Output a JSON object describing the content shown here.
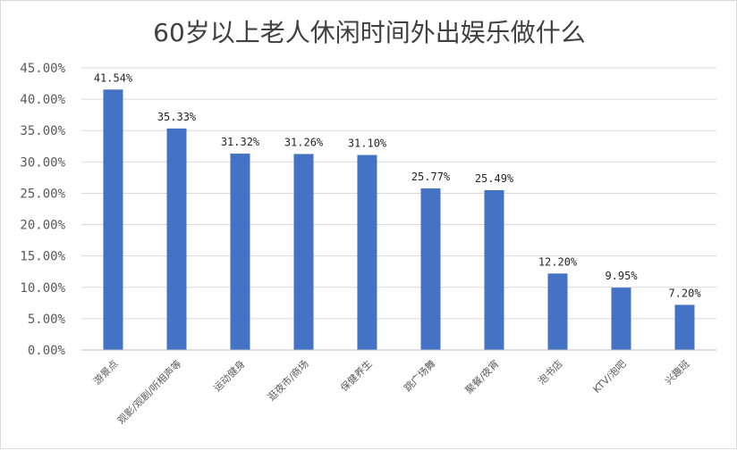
{
  "chart_data": {
    "type": "bar",
    "title": "60岁以上老人休闲时间外出娱乐做什么",
    "categories": [
      "游景点",
      "观影/观剧/听相声等",
      "运动健身",
      "逛夜市/商场",
      "保健养生",
      "跳广场舞",
      "聚餐/夜宵",
      "泡书店",
      "KTV/泡吧",
      "兴趣班"
    ],
    "values": [
      41.54,
      35.33,
      31.32,
      31.26,
      31.1,
      25.77,
      25.49,
      12.2,
      9.95,
      7.2
    ],
    "data_labels": [
      "41.54%",
      "35.33%",
      "31.32%",
      "31.26%",
      "31.10%",
      "25.77%",
      "25.49%",
      "12.20%",
      "9.95%",
      "7.20%"
    ],
    "y_ticks": [
      "0.00%",
      "5.00%",
      "10.00%",
      "15.00%",
      "20.00%",
      "25.00%",
      "30.00%",
      "35.00%",
      "40.00%",
      "45.00%"
    ],
    "ylim": [
      0,
      45
    ],
    "grid": true,
    "bar_color": "#4472C4"
  }
}
